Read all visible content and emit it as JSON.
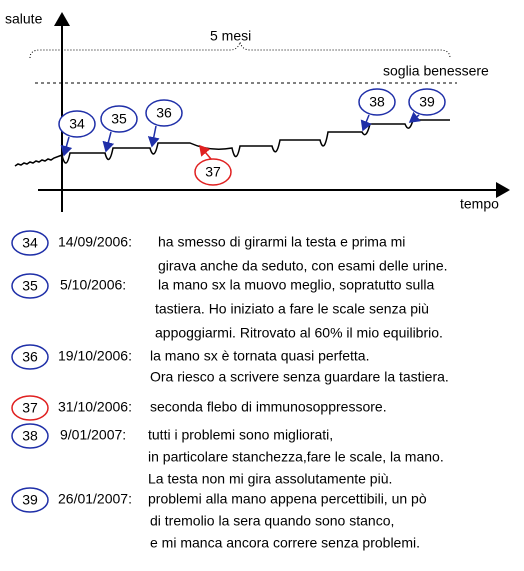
{
  "diagram": {
    "y_label": "salute",
    "x_label": "tempo",
    "span_label": "5 mesi",
    "threshold_label": "soglia benessere",
    "markers": [
      {
        "label": "34",
        "color": "#1f2fa8"
      },
      {
        "label": "35",
        "color": "#1f2fa8"
      },
      {
        "label": "36",
        "color": "#1f2fa8"
      },
      {
        "label": "37",
        "color": "#e02020"
      },
      {
        "label": "38",
        "color": "#1f2fa8"
      },
      {
        "label": "39",
        "color": "#1f2fa8"
      }
    ]
  },
  "notes": [
    {
      "number": "34",
      "color": "#1f2fa8",
      "date": "14/09/2006:",
      "lines": [
        "ha smesso di girarmi la testa e prima mi",
        "girava anche da seduto, con esami delle urine."
      ]
    },
    {
      "number": "35",
      "color": "#1f2fa8",
      "date": "5/10/2006:",
      "lines": [
        "la mano sx la muovo meglio, sopratutto sulla",
        "tastiera. Ho iniziato a fare le scale senza più",
        "appoggiarmi. Ritrovato al 60% il mio equilibrio."
      ]
    },
    {
      "number": "36",
      "color": "#1f2fa8",
      "date": "19/10/2006:",
      "lines": [
        "la mano sx è tornata quasi perfetta.",
        "Ora riesco a scrivere senza guardare la tastiera."
      ]
    },
    {
      "number": "37",
      "color": "#e02020",
      "date": "31/10/2006:",
      "lines": [
        "seconda flebo di immunosoppressore."
      ]
    },
    {
      "number": "38",
      "color": "#1f2fa8",
      "date": "9/01/2007:",
      "lines": [
        "tutti i problemi sono migliorati,",
        "in particolare stanchezza,fare le scale, la mano.",
        "La testa non mi gira assolutamente più."
      ]
    },
    {
      "number": "39",
      "color": "#1f2fa8",
      "date": "26/01/2007:",
      "lines": [
        "problemi alla mano appena percettibili, un pò",
        "di tremolio la sera quando sono stanco,",
        "e mi manca ancora correre senza problemi."
      ]
    }
  ]
}
